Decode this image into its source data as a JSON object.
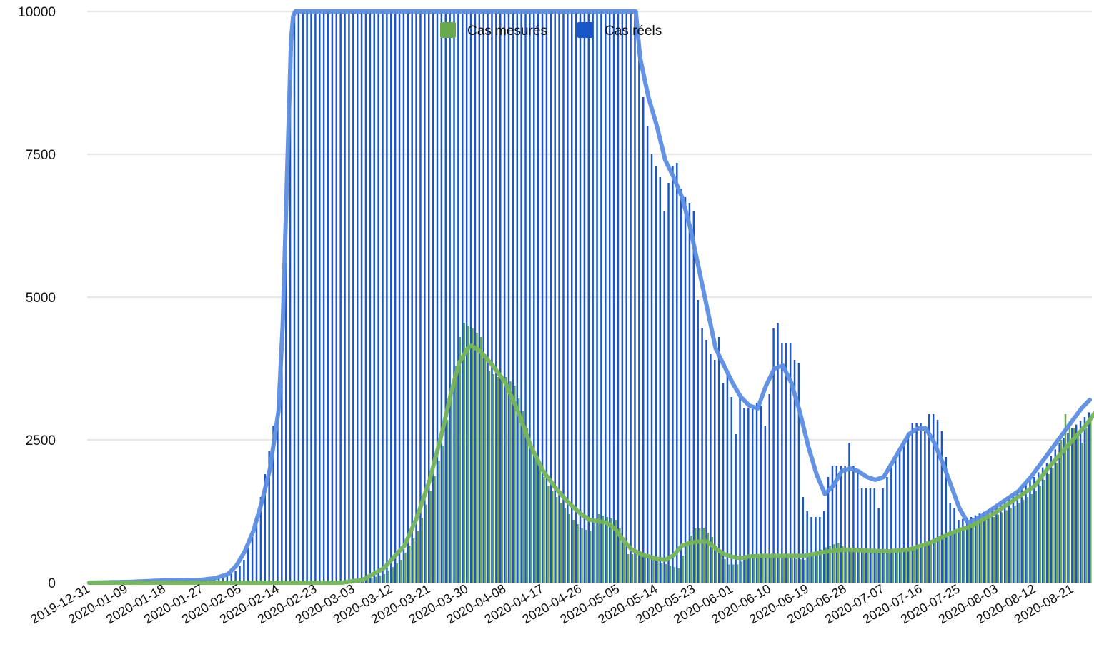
{
  "chart_data": {
    "type": "bar",
    "ylim": [
      0,
      10000
    ],
    "y_ticks": [
      "0",
      "2500",
      "5000",
      "7500",
      "10000"
    ],
    "x_tick_labels": [
      "2019-12-31",
      "2020-01-09",
      "2020-01-18",
      "2020-01-27",
      "2020-02-05",
      "2020-02-14",
      "2020-02-23",
      "2020-03-03",
      "2020-03-12",
      "2020-03-21",
      "2020-03-30",
      "2020-04-08",
      "2020-04-17",
      "2020-04-26",
      "2020-05-05",
      "2020-05-14",
      "2020-05-23",
      "2020-06-01",
      "2020-06-10",
      "2020-06-19",
      "2020-06-28",
      "2020-07-07",
      "2020-07-16",
      "2020-07-25",
      "2020-08-03",
      "2020-08-12",
      "2020-08-21"
    ],
    "start_date": "2019-12-31",
    "end_date": "2020-08-25",
    "grid": true,
    "legend_position": "top",
    "series": [
      {
        "name": "Cas mesurés",
        "color": "#6aa84f",
        "trend_color": "#76b55a",
        "bar_keypoints": [
          [
            0,
            0
          ],
          [
            60,
            0
          ],
          [
            65,
            40
          ],
          [
            70,
            150
          ],
          [
            74,
            400
          ],
          [
            78,
            900
          ],
          [
            81,
            1600
          ],
          [
            84,
            2400
          ],
          [
            86,
            3300
          ],
          [
            88,
            4300
          ],
          [
            89,
            4550
          ],
          [
            91,
            4450
          ],
          [
            93,
            4300
          ],
          [
            95,
            3700
          ],
          [
            97,
            3600
          ],
          [
            99,
            3600
          ],
          [
            101,
            3450
          ],
          [
            103,
            3000
          ],
          [
            105,
            2400
          ],
          [
            107,
            2000
          ],
          [
            109,
            1700
          ],
          [
            111,
            1500
          ],
          [
            113,
            1300
          ],
          [
            115,
            1100
          ],
          [
            117,
            950
          ],
          [
            119,
            900
          ],
          [
            121,
            1200
          ],
          [
            123,
            1150
          ],
          [
            125,
            1100
          ],
          [
            126,
            950
          ],
          [
            127,
            700
          ],
          [
            128,
            500
          ],
          [
            130,
            500
          ],
          [
            132,
            450
          ],
          [
            134,
            400
          ],
          [
            136,
            350
          ],
          [
            138,
            300
          ],
          [
            140,
            250
          ],
          [
            142,
            700
          ],
          [
            144,
            950
          ],
          [
            146,
            950
          ],
          [
            148,
            800
          ],
          [
            150,
            500
          ],
          [
            152,
            320
          ],
          [
            154,
            320
          ],
          [
            156,
            420
          ],
          [
            158,
            500
          ],
          [
            160,
            450
          ],
          [
            165,
            450
          ],
          [
            170,
            400
          ],
          [
            172,
            500
          ],
          [
            175,
            620
          ],
          [
            178,
            700
          ],
          [
            180,
            580
          ],
          [
            185,
            550
          ],
          [
            190,
            550
          ],
          [
            195,
            600
          ],
          [
            200,
            750
          ],
          [
            205,
            900
          ],
          [
            210,
            1050
          ],
          [
            215,
            1150
          ],
          [
            220,
            1350
          ],
          [
            225,
            1600
          ],
          [
            228,
            1900
          ],
          [
            230,
            2100
          ],
          [
            231,
            2500
          ],
          [
            232,
            2950
          ],
          [
            234,
            2700
          ],
          [
            236,
            2450
          ],
          [
            237,
            2700
          ],
          [
            239,
            3150
          ],
          [
            241,
            3300
          ],
          [
            242,
            3500
          ],
          [
            243,
            3700
          ],
          [
            244,
            3850
          ],
          [
            245,
            4100
          ]
        ],
        "trend_keypoints": [
          [
            0,
            0
          ],
          [
            60,
            0
          ],
          [
            65,
            50
          ],
          [
            70,
            250
          ],
          [
            75,
            650
          ],
          [
            78,
            1150
          ],
          [
            81,
            1800
          ],
          [
            84,
            2650
          ],
          [
            86,
            3300
          ],
          [
            88,
            3850
          ],
          [
            90,
            4100
          ],
          [
            91,
            4150
          ],
          [
            93,
            4050
          ],
          [
            96,
            3800
          ],
          [
            99,
            3500
          ],
          [
            102,
            3000
          ],
          [
            105,
            2400
          ],
          [
            108,
            1950
          ],
          [
            111,
            1650
          ],
          [
            114,
            1400
          ],
          [
            117,
            1200
          ],
          [
            119,
            1100
          ],
          [
            121,
            1080
          ],
          [
            123,
            1050
          ],
          [
            125,
            950
          ],
          [
            127,
            750
          ],
          [
            129,
            580
          ],
          [
            132,
            480
          ],
          [
            135,
            420
          ],
          [
            137,
            400
          ],
          [
            139,
            480
          ],
          [
            141,
            650
          ],
          [
            143,
            700
          ],
          [
            145,
            720
          ],
          [
            147,
            720
          ],
          [
            149,
            600
          ],
          [
            151,
            500
          ],
          [
            153,
            450
          ],
          [
            155,
            430
          ],
          [
            157,
            460
          ],
          [
            160,
            470
          ],
          [
            165,
            470
          ],
          [
            170,
            470
          ],
          [
            175,
            540
          ],
          [
            180,
            580
          ],
          [
            185,
            560
          ],
          [
            190,
            550
          ],
          [
            195,
            580
          ],
          [
            200,
            700
          ],
          [
            205,
            870
          ],
          [
            210,
            1000
          ],
          [
            215,
            1200
          ],
          [
            220,
            1450
          ],
          [
            225,
            1700
          ],
          [
            228,
            2000
          ],
          [
            231,
            2250
          ],
          [
            234,
            2500
          ],
          [
            237,
            2750
          ],
          [
            240,
            3050
          ],
          [
            242,
            3150
          ]
        ]
      },
      {
        "name": "Cas réels",
        "color": "#1a56c8",
        "trend_color": "#5b8de0",
        "bar_keypoints": [
          [
            0,
            0
          ],
          [
            25,
            20
          ],
          [
            32,
            80
          ],
          [
            35,
            200
          ],
          [
            37,
            400
          ],
          [
            39,
            800
          ],
          [
            41,
            1500
          ],
          [
            43,
            2300
          ],
          [
            45,
            3200
          ],
          [
            46,
            4000
          ],
          [
            47,
            5600
          ],
          [
            48,
            8800
          ],
          [
            49,
            10000
          ],
          [
            130,
            10000
          ],
          [
            131,
            9500
          ],
          [
            132,
            8500
          ],
          [
            133,
            8000
          ],
          [
            134,
            7500
          ],
          [
            135,
            7300
          ],
          [
            136,
            7100
          ],
          [
            137,
            6500
          ],
          [
            138,
            7000
          ],
          [
            139,
            7300
          ],
          [
            140,
            7350
          ],
          [
            141,
            6900
          ],
          [
            142,
            6750
          ],
          [
            143,
            6650
          ],
          [
            144,
            6500
          ],
          [
            145,
            4950
          ],
          [
            146,
            4450
          ],
          [
            147,
            4250
          ],
          [
            148,
            4000
          ],
          [
            149,
            3900
          ],
          [
            150,
            4300
          ],
          [
            151,
            3500
          ],
          [
            152,
            3650
          ],
          [
            153,
            3250
          ],
          [
            154,
            2600
          ],
          [
            155,
            3250
          ],
          [
            156,
            3050
          ],
          [
            157,
            3050
          ],
          [
            158,
            3100
          ],
          [
            159,
            3150
          ],
          [
            160,
            3100
          ],
          [
            161,
            2750
          ],
          [
            162,
            3300
          ],
          [
            163,
            4450
          ],
          [
            164,
            4550
          ],
          [
            165,
            4200
          ],
          [
            166,
            4200
          ],
          [
            167,
            4200
          ],
          [
            168,
            3900
          ],
          [
            169,
            3850
          ],
          [
            170,
            1500
          ],
          [
            171,
            1250
          ],
          [
            172,
            1150
          ],
          [
            173,
            1150
          ],
          [
            174,
            1150
          ],
          [
            175,
            1250
          ],
          [
            176,
            1850
          ],
          [
            177,
            2050
          ],
          [
            178,
            2050
          ],
          [
            179,
            2050
          ],
          [
            180,
            2050
          ],
          [
            181,
            2450
          ],
          [
            182,
            2050
          ],
          [
            183,
            1950
          ],
          [
            184,
            1650
          ],
          [
            185,
            1650
          ],
          [
            186,
            1650
          ],
          [
            187,
            1650
          ],
          [
            188,
            1300
          ],
          [
            189,
            1650
          ],
          [
            190,
            1850
          ],
          [
            191,
            2050
          ],
          [
            192,
            2200
          ],
          [
            193,
            2300
          ],
          [
            194,
            2450
          ],
          [
            195,
            2600
          ],
          [
            196,
            2800
          ],
          [
            197,
            2800
          ],
          [
            198,
            2800
          ],
          [
            199,
            2650
          ],
          [
            200,
            2950
          ],
          [
            201,
            2950
          ],
          [
            202,
            2850
          ],
          [
            203,
            2650
          ],
          [
            204,
            2200
          ],
          [
            205,
            1400
          ],
          [
            206,
            1300
          ],
          [
            207,
            1100
          ],
          [
            210,
            1150
          ],
          [
            215,
            1300
          ],
          [
            220,
            1550
          ],
          [
            225,
            1850
          ],
          [
            228,
            2100
          ],
          [
            231,
            2450
          ],
          [
            234,
            2700
          ],
          [
            237,
            2900
          ],
          [
            240,
            3150
          ],
          [
            242,
            3550
          ],
          [
            243,
            3700
          ],
          [
            244,
            3850
          ],
          [
            245,
            4100
          ]
        ],
        "trend_keypoints": [
          [
            0,
            0
          ],
          [
            10,
            15
          ],
          [
            18,
            40
          ],
          [
            26,
            45
          ],
          [
            30,
            80
          ],
          [
            33,
            150
          ],
          [
            35,
            300
          ],
          [
            37,
            550
          ],
          [
            39,
            900
          ],
          [
            41,
            1400
          ],
          [
            43,
            2000
          ],
          [
            45,
            3000
          ],
          [
            46,
            4500
          ],
          [
            47,
            7000
          ],
          [
            48,
            9500
          ],
          [
            48.6,
            10000
          ],
          [
            130,
            10000
          ],
          [
            131,
            9200
          ],
          [
            133,
            8500
          ],
          [
            135,
            8000
          ],
          [
            137,
            7400
          ],
          [
            139,
            7100
          ],
          [
            141,
            6750
          ],
          [
            143,
            6200
          ],
          [
            145,
            5500
          ],
          [
            147,
            4800
          ],
          [
            149,
            4100
          ],
          [
            151,
            3800
          ],
          [
            153,
            3500
          ],
          [
            155,
            3250
          ],
          [
            157,
            3100
          ],
          [
            159,
            3050
          ],
          [
            161,
            3450
          ],
          [
            163,
            3750
          ],
          [
            165,
            3800
          ],
          [
            167,
            3500
          ],
          [
            169,
            3000
          ],
          [
            171,
            2400
          ],
          [
            173,
            1900
          ],
          [
            175,
            1550
          ],
          [
            177,
            1700
          ],
          [
            179,
            1950
          ],
          [
            181,
            2000
          ],
          [
            183,
            1950
          ],
          [
            185,
            1850
          ],
          [
            187,
            1800
          ],
          [
            189,
            1850
          ],
          [
            191,
            2100
          ],
          [
            193,
            2350
          ],
          [
            195,
            2600
          ],
          [
            197,
            2700
          ],
          [
            199,
            2700
          ],
          [
            201,
            2450
          ],
          [
            203,
            2100
          ],
          [
            205,
            1700
          ],
          [
            207,
            1300
          ],
          [
            209,
            1050
          ],
          [
            212,
            1150
          ],
          [
            215,
            1300
          ],
          [
            218,
            1450
          ],
          [
            221,
            1600
          ],
          [
            224,
            1850
          ],
          [
            227,
            2150
          ],
          [
            230,
            2450
          ],
          [
            233,
            2750
          ],
          [
            236,
            3050
          ],
          [
            238,
            3200
          ]
        ]
      }
    ]
  }
}
